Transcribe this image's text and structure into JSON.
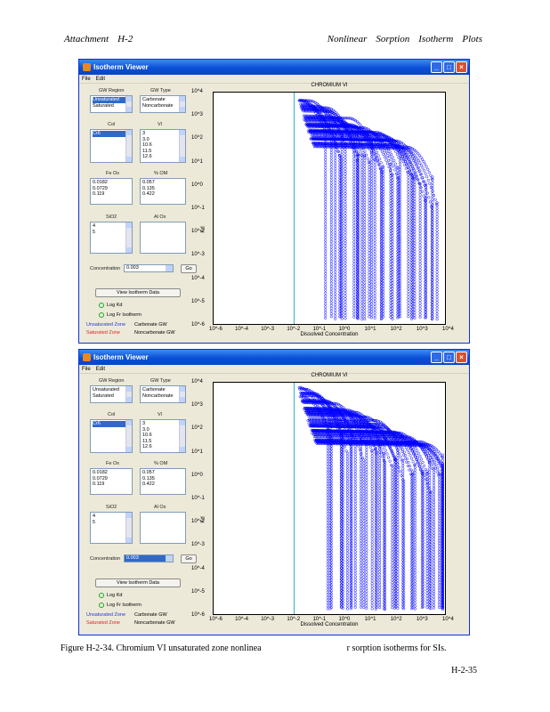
{
  "page_header": {
    "left": [
      "Attachment",
      "H-2"
    ],
    "right": [
      "Nonlinear",
      "Sorption",
      "Isotherm",
      "Plots"
    ]
  },
  "caption": {
    "part1": "Figure H-2-34. Chromium VI unsaturated zone nonlinea",
    "part2": "r sorption isotherms for SIs."
  },
  "page_number": "H-2-35",
  "windows": [
    {
      "title": "Isotherm Viewer",
      "menu": [
        "File",
        "Edit"
      ],
      "controls": {
        "gw_region_label": "GW Region",
        "gw_region_items": [
          "Unsaturated",
          "Saturated"
        ],
        "gw_region_selected": 0,
        "gw_type_label": "GW Type",
        "gw_type_items": [
          "Carbonate",
          "Noncarbonate"
        ],
        "gw_type_selected": -1,
        "col_label": "Col",
        "col_items": [
          "Cr6"
        ],
        "col_selected": 0,
        "vl_label": "Vl",
        "vl_items": [
          "3",
          "3.0",
          "10.6",
          "11.5",
          "12.6"
        ],
        "fe_label": "Fe Ox",
        "fe_items": [
          "0.0182",
          "0.0729",
          "0.119"
        ],
        "ohm_label": "% OM",
        "ohm_items": [
          "0.057",
          "0.135",
          "0.422"
        ],
        "sio_label": "SiO2",
        "sio_items": [
          "4",
          "5"
        ],
        "aloz_label": "Al Ox",
        "aloz_items": [],
        "concentration_label": "Concentration",
        "concentration_value": "0.003",
        "concentration_active": false,
        "go_label": "Go",
        "view_button": "View Isotherm Data",
        "radio1": "Log Kd",
        "radio2": "Log Fr Isotherm",
        "legend_unsat": "Unsaturated Zone",
        "legend_sat": "Saturated Zone",
        "legend_carb": "Carbonate GW",
        "legend_noncarb": "Noncarbonate GW"
      },
      "plot": {
        "title": "CHROMIUM VI",
        "xlabel": "Dissolved Concentration",
        "ylabel": "Kd"
      }
    },
    {
      "title": "Isotherm Viewer",
      "menu": [
        "File",
        "Edit"
      ],
      "controls": {
        "gw_region_label": "GW Region",
        "gw_region_items": [
          "Unsaturated",
          "Saturated"
        ],
        "gw_region_selected": -1,
        "gw_type_label": "GW Type",
        "gw_type_items": [
          "Carbonate",
          "Noncarbonate"
        ],
        "gw_type_selected": -1,
        "col_label": "Col",
        "col_items": [
          "Cr6"
        ],
        "col_selected": 0,
        "vl_label": "Vl",
        "vl_items": [
          "3",
          "3.0",
          "10.6",
          "11.5",
          "12.6"
        ],
        "fe_label": "Fe Ox",
        "fe_items": [
          "0.0182",
          "0.0729",
          "0.119"
        ],
        "ohm_label": "% OM",
        "ohm_items": [
          "0.057",
          "0.135",
          "0.422"
        ],
        "sio_label": "SiO2",
        "sio_items": [
          "4",
          "5"
        ],
        "aloz_label": "Al Ox",
        "aloz_items": [],
        "concentration_label": "Concentration",
        "concentration_value": "0.003",
        "concentration_active": true,
        "go_label": "Go",
        "view_button": "View Isotherm Data",
        "radio1": "Log Kd",
        "radio2": "Log Fr Isotherm",
        "legend_unsat": "Unsaturated Zone",
        "legend_sat": "Saturated Zone",
        "legend_carb": "Carbonate GW",
        "legend_noncarb": "Noncarbonate GW"
      },
      "plot": {
        "title": "CHROMIUM VI",
        "xlabel": "Dissolved Concentration",
        "ylabel": "Kd"
      }
    }
  ],
  "chart_data": {
    "type": "scatter",
    "xscale": "log",
    "yscale": "log",
    "xlim": [
      1e-06,
      10000.0
    ],
    "ylim": [
      1e-06,
      10000.0
    ],
    "x_tick_labels": [
      "10^-6",
      "10^-4",
      "10^-3",
      "10^-2",
      "10^-1",
      "10^0",
      "10^1",
      "10^2",
      "10^3",
      "10^4"
    ],
    "y_tick_labels": [
      "10^4",
      "10^3",
      "10^2",
      "10^1",
      "10^0",
      "10^-1",
      "10^-2",
      "10^-3",
      "10^-4",
      "10^-5",
      "10^-6"
    ],
    "reference_line_x": 0.003,
    "marker_color": "#0000ff",
    "reference_color": "#00a0c0"
  }
}
